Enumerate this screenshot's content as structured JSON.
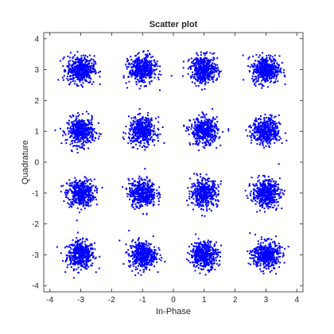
{
  "chart_data": {
    "type": "scatter",
    "title": "Scatter plot",
    "xlabel": "In-Phase",
    "ylabel": "Quadrature",
    "xlim": [
      -4.2,
      4.2
    ],
    "ylim": [
      -4.2,
      4.2
    ],
    "xticks": [
      -4,
      -3,
      -2,
      -1,
      0,
      1,
      2,
      3,
      4
    ],
    "yticks": [
      -4,
      -3,
      -2,
      -1,
      0,
      1,
      2,
      3,
      4
    ],
    "grid": false,
    "legend": "none",
    "marker_color": "#0000ff",
    "constellation": {
      "i_levels": [
        -3,
        -1,
        1,
        3
      ],
      "q_levels": [
        -3,
        -1,
        1,
        3
      ],
      "points_per_symbol": 450,
      "noise_std": 0.22
    }
  }
}
